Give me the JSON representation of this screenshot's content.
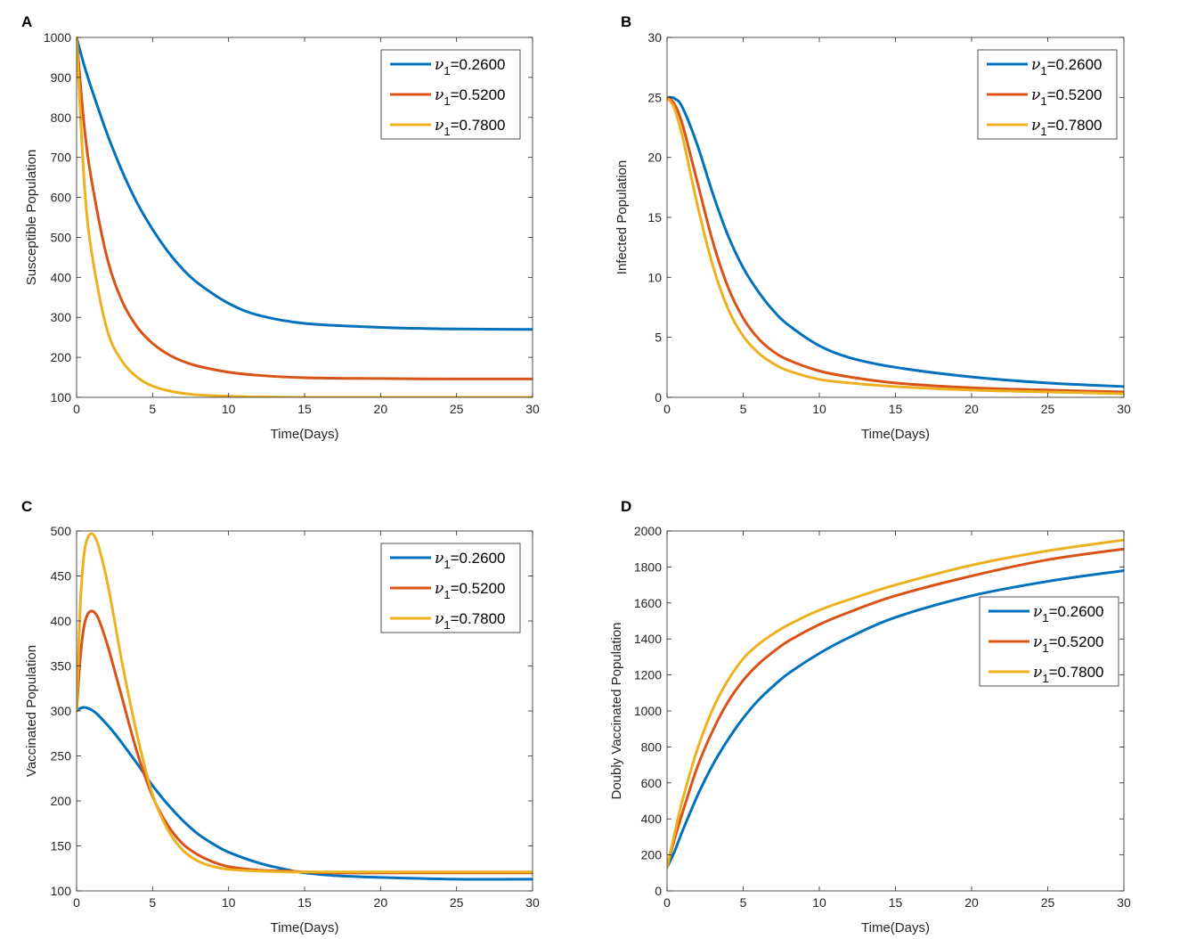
{
  "colors": {
    "series1": "#0072BD",
    "series2": "#D95319",
    "series3": "#EDB120",
    "axis": "#262626"
  },
  "legend_symbol": "ν",
  "legend_subscript": "1",
  "chart_data": [
    {
      "panel": "A",
      "type": "line",
      "xlabel": "Time(Days)",
      "ylabel": "Susceptible Population",
      "xlim": [
        0,
        30
      ],
      "ylim": [
        100,
        1000
      ],
      "xticks": [
        0,
        5,
        10,
        15,
        20,
        25,
        30
      ],
      "yticks": [
        100,
        200,
        300,
        400,
        500,
        600,
        700,
        800,
        900,
        1000
      ],
      "legend_position": "top-right",
      "x": [
        0,
        0.5,
        1,
        2,
        3,
        4,
        5,
        6,
        7,
        8,
        10,
        12,
        15,
        20,
        25,
        30
      ],
      "series": [
        {
          "name": "=0.2600",
          "values": [
            1000,
            930,
            870,
            760,
            665,
            585,
            520,
            465,
            420,
            385,
            335,
            305,
            285,
            275,
            271,
            270
          ]
        },
        {
          "name": "=0.5200",
          "values": [
            1000,
            780,
            640,
            450,
            340,
            275,
            235,
            208,
            190,
            178,
            163,
            155,
            149,
            147,
            146,
            146
          ]
        },
        {
          "name": "=0.7800",
          "values": [
            1000,
            640,
            460,
            270,
            190,
            150,
            128,
            117,
            110,
            106,
            103,
            101,
            100,
            100,
            100,
            100
          ]
        }
      ]
    },
    {
      "panel": "B",
      "type": "line",
      "xlabel": "Time(Days)",
      "ylabel": "Infected Population",
      "xlim": [
        0,
        30
      ],
      "ylim": [
        0,
        30
      ],
      "xticks": [
        0,
        5,
        10,
        15,
        20,
        25,
        30
      ],
      "yticks": [
        0,
        5,
        10,
        15,
        20,
        25,
        30
      ],
      "legend_position": "top-right",
      "x": [
        0,
        0.25,
        0.5,
        1,
        2,
        3,
        4,
        5,
        6,
        7,
        8,
        10,
        12,
        15,
        20,
        25,
        30
      ],
      "series": [
        {
          "name": "=0.2600",
          "values": [
            25,
            25,
            24.9,
            24.2,
            21,
            17,
            13.5,
            10.8,
            8.8,
            7.2,
            6,
            4.3,
            3.3,
            2.5,
            1.7,
            1.2,
            0.9
          ]
        },
        {
          "name": "=0.5200",
          "values": [
            25,
            24.8,
            24.4,
            22.8,
            17.9,
            13,
            9.2,
            6.6,
            4.9,
            3.8,
            3.1,
            2.2,
            1.7,
            1.2,
            0.8,
            0.6,
            0.45
          ]
        },
        {
          "name": "=0.7800",
          "values": [
            25,
            24.6,
            24,
            21.8,
            16,
            11,
            7.4,
            5.1,
            3.7,
            2.8,
            2.2,
            1.5,
            1.2,
            0.9,
            0.6,
            0.45,
            0.3
          ]
        }
      ]
    },
    {
      "panel": "C",
      "type": "line",
      "xlabel": "Time(Days)",
      "ylabel": "Vaccinated Population",
      "xlim": [
        0,
        30
      ],
      "ylim": [
        100,
        500
      ],
      "xticks": [
        0,
        5,
        10,
        15,
        20,
        25,
        30
      ],
      "yticks": [
        100,
        150,
        200,
        250,
        300,
        350,
        400,
        450,
        500
      ],
      "legend_position": "top-right",
      "x": [
        0,
        0.25,
        0.5,
        0.75,
        1,
        1.25,
        1.5,
        2,
        2.5,
        3,
        4,
        5,
        6,
        7,
        8,
        9,
        10,
        12,
        14,
        15,
        17,
        20,
        25,
        30
      ],
      "series": [
        {
          "name": "=0.2600",
          "values": [
            300,
            303,
            304,
            303,
            301,
            298,
            294,
            285,
            275,
            264,
            241,
            217,
            196,
            178,
            163,
            152,
            143,
            131,
            123,
            120,
            117,
            115,
            113,
            113
          ]
        },
        {
          "name": "=0.5200",
          "values": [
            300,
            360,
            395,
            408,
            411,
            408,
            400,
            375,
            345,
            314,
            253,
            205,
            173,
            152,
            140,
            132,
            127,
            123,
            122,
            121,
            120,
            120,
            120,
            120
          ]
        },
        {
          "name": "=0.7800",
          "values": [
            300,
            420,
            475,
            493,
            497,
            492,
            480,
            445,
            400,
            353,
            272,
            207,
            168,
            145,
            133,
            127,
            124,
            122,
            121,
            121,
            121,
            121,
            121,
            121
          ]
        }
      ]
    },
    {
      "panel": "D",
      "type": "line",
      "xlabel": "Time(Days)",
      "ylabel": "Doubly Vaccinated Population",
      "xlim": [
        0,
        30
      ],
      "ylim": [
        0,
        2000
      ],
      "xticks": [
        0,
        5,
        10,
        15,
        20,
        25,
        30
      ],
      "yticks": [
        0,
        200,
        400,
        600,
        800,
        1000,
        1200,
        1400,
        1600,
        1800,
        2000
      ],
      "legend_position": "middle-right",
      "x": [
        0,
        0.5,
        1,
        2,
        3,
        4,
        5,
        6,
        7,
        8,
        10,
        12,
        15,
        20,
        25,
        30
      ],
      "series": [
        {
          "name": "=0.2600",
          "values": [
            130,
            220,
            330,
            530,
            700,
            840,
            960,
            1060,
            1140,
            1210,
            1320,
            1410,
            1520,
            1640,
            1720,
            1780
          ]
        },
        {
          "name": "=0.5200",
          "values": [
            130,
            290,
            430,
            690,
            890,
            1050,
            1170,
            1260,
            1330,
            1390,
            1480,
            1550,
            1640,
            1750,
            1840,
            1900
          ]
        },
        {
          "name": "=0.7800",
          "values": [
            130,
            320,
            500,
            790,
            1010,
            1170,
            1290,
            1370,
            1430,
            1480,
            1560,
            1620,
            1700,
            1810,
            1890,
            1950
          ]
        }
      ]
    }
  ]
}
